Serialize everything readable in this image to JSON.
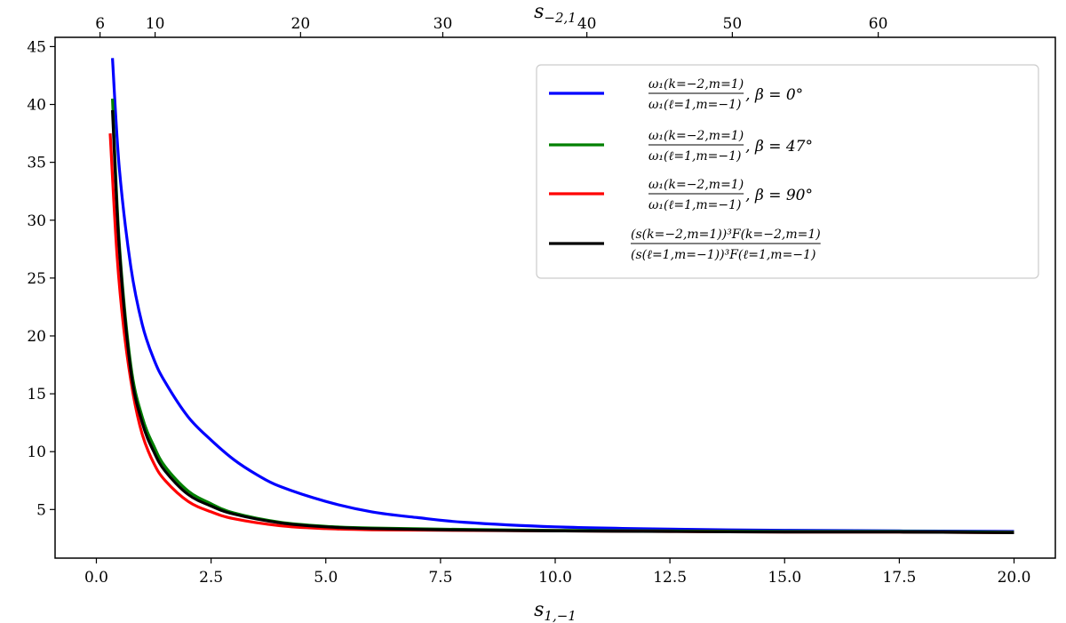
{
  "chart_data": {
    "type": "line",
    "xlabel": "s",
    "xlabel_sub": "1,−1",
    "top_xlabel": "s",
    "top_xlabel_sub": "−2,1",
    "ylabel": "",
    "xlim": [
      -0.9,
      20.9
    ],
    "ylim": [
      0.8,
      45.8
    ],
    "x_ticks": [
      0.0,
      2.5,
      5.0,
      7.5,
      10.0,
      12.5,
      15.0,
      17.5,
      20.0
    ],
    "x_tick_labels": [
      "0.0",
      "2.5",
      "5.0",
      "7.5",
      "10.0",
      "12.5",
      "15.0",
      "17.5",
      "20.0"
    ],
    "y_ticks": [
      5,
      10,
      15,
      20,
      25,
      30,
      35,
      40,
      45
    ],
    "y_tick_labels": [
      "5",
      "10",
      "15",
      "20",
      "25",
      "30",
      "35",
      "40",
      "45"
    ],
    "top_ticks": [
      {
        "value": 6,
        "label": "6",
        "x_bottom": 0.08
      },
      {
        "value": 10,
        "label": "10",
        "x_bottom": 1.28
      },
      {
        "value": 20,
        "label": "20",
        "x_bottom": 4.45
      },
      {
        "value": 30,
        "label": "30",
        "x_bottom": 7.55
      },
      {
        "value": 40,
        "label": "40",
        "x_bottom": 10.69
      },
      {
        "value": 50,
        "label": "50",
        "x_bottom": 13.86
      },
      {
        "value": 60,
        "label": "60",
        "x_bottom": 17.04
      }
    ],
    "grid": false,
    "legend_position": "top-right",
    "series": [
      {
        "color": "#0000ff",
        "legend_num": "ω₁(k=−2,m=1)",
        "legend_den": "ω₁(ℓ=1,m=−1)",
        "legend_suffix": ", β = 0°",
        "x": [
          0.35,
          0.5,
          0.75,
          1.0,
          1.25,
          1.5,
          2.0,
          2.5,
          3.0,
          3.5,
          4.0,
          5.0,
          6.0,
          7.0,
          8.0,
          10.0,
          12.5,
          15.0,
          17.5,
          20.0
        ],
        "y": [
          44.0,
          34.5,
          26.0,
          21.0,
          18.0,
          16.0,
          13.0,
          11.0,
          9.3,
          8.0,
          7.0,
          5.7,
          4.8,
          4.3,
          3.9,
          3.5,
          3.3,
          3.2,
          3.15,
          3.1
        ]
      },
      {
        "color": "#008000",
        "legend_num": "ω₁(k=−2,m=1)",
        "legend_den": "ω₁(ℓ=1,m=−1)",
        "legend_suffix": ", β = 47°",
        "x": [
          0.35,
          0.5,
          0.75,
          1.0,
          1.25,
          1.5,
          2.0,
          2.5,
          3.0,
          4.0,
          5.0,
          6.0,
          7.5,
          10.0,
          12.5,
          15.0,
          17.5,
          20.0
        ],
        "y": [
          40.5,
          28.0,
          17.5,
          13.0,
          10.5,
          8.7,
          6.6,
          5.5,
          4.7,
          3.9,
          3.55,
          3.4,
          3.3,
          3.2,
          3.15,
          3.1,
          3.1,
          3.05
        ]
      },
      {
        "color": "#ff0000",
        "legend_num": "ω₁(k=−2,m=1)",
        "legend_den": "ω₁(ℓ=1,m=−1)",
        "legend_suffix": ", β = 90°",
        "x": [
          0.3,
          0.45,
          0.6,
          0.8,
          1.0,
          1.25,
          1.5,
          2.0,
          2.5,
          3.0,
          4.0,
          5.0,
          6.0,
          7.5,
          10.0,
          12.5,
          15.0,
          17.5,
          20.0
        ],
        "y": [
          37.5,
          27.0,
          20.5,
          15.0,
          11.5,
          9.0,
          7.5,
          5.7,
          4.8,
          4.2,
          3.6,
          3.35,
          3.25,
          3.2,
          3.15,
          3.1,
          3.05,
          3.05,
          3.0
        ]
      },
      {
        "color": "#000000",
        "legend_num": "(s(k=−2,m=1))³F(k=−2,m=1)",
        "legend_den": "(s(ℓ=1,m=−1))³F(ℓ=1,m=−1)",
        "legend_suffix": "",
        "x": [
          0.35,
          0.5,
          0.75,
          1.0,
          1.25,
          1.5,
          2.0,
          2.5,
          3.0,
          4.0,
          5.0,
          6.0,
          7.5,
          10.0,
          12.5,
          15.0,
          17.5,
          20.0
        ],
        "y": [
          39.5,
          27.5,
          17.0,
          12.5,
          10.0,
          8.3,
          6.3,
          5.3,
          4.6,
          3.85,
          3.5,
          3.35,
          3.25,
          3.15,
          3.1,
          3.05,
          3.05,
          3.0
        ]
      }
    ]
  }
}
